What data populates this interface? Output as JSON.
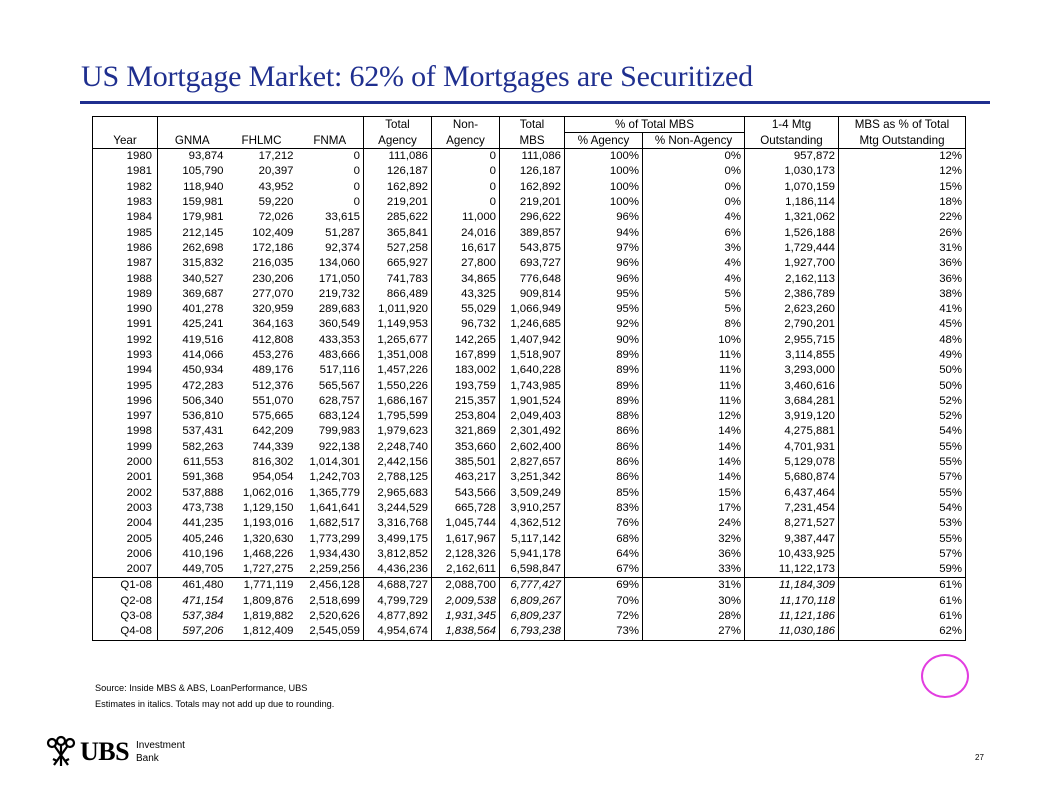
{
  "title": "US Mortgage Market: 62% of Mortgages are Securitized",
  "table": {
    "headers_row1": [
      "",
      "",
      "",
      "",
      "Total",
      "Non-",
      "Total",
      "% of Total MBS",
      "1-4 Mtg",
      "MBS as % of Total"
    ],
    "headers_row2": [
      "Year",
      "GNMA",
      "FHLMC",
      "FNMA",
      "Agency",
      "Agency",
      "MBS",
      "% Agency",
      "% Non-Agency",
      "Outstanding",
      "Mtg Outstanding"
    ],
    "rows": [
      [
        "1980",
        "93,874",
        "17,212",
        "0",
        "111,086",
        "0",
        "111,086",
        "100%",
        "0%",
        "957,872",
        "12%"
      ],
      [
        "1981",
        "105,790",
        "20,397",
        "0",
        "126,187",
        "0",
        "126,187",
        "100%",
        "0%",
        "1,030,173",
        "12%"
      ],
      [
        "1982",
        "118,940",
        "43,952",
        "0",
        "162,892",
        "0",
        "162,892",
        "100%",
        "0%",
        "1,070,159",
        "15%"
      ],
      [
        "1983",
        "159,981",
        "59,220",
        "0",
        "219,201",
        "0",
        "219,201",
        "100%",
        "0%",
        "1,186,114",
        "18%"
      ],
      [
        "1984",
        "179,981",
        "72,026",
        "33,615",
        "285,622",
        "11,000",
        "296,622",
        "96%",
        "4%",
        "1,321,062",
        "22%"
      ],
      [
        "1985",
        "212,145",
        "102,409",
        "51,287",
        "365,841",
        "24,016",
        "389,857",
        "94%",
        "6%",
        "1,526,188",
        "26%"
      ],
      [
        "1986",
        "262,698",
        "172,186",
        "92,374",
        "527,258",
        "16,617",
        "543,875",
        "97%",
        "3%",
        "1,729,444",
        "31%"
      ],
      [
        "1987",
        "315,832",
        "216,035",
        "134,060",
        "665,927",
        "27,800",
        "693,727",
        "96%",
        "4%",
        "1,927,700",
        "36%"
      ],
      [
        "1988",
        "340,527",
        "230,206",
        "171,050",
        "741,783",
        "34,865",
        "776,648",
        "96%",
        "4%",
        "2,162,113",
        "36%"
      ],
      [
        "1989",
        "369,687",
        "277,070",
        "219,732",
        "866,489",
        "43,325",
        "909,814",
        "95%",
        "5%",
        "2,386,789",
        "38%"
      ],
      [
        "1990",
        "401,278",
        "320,959",
        "289,683",
        "1,011,920",
        "55,029",
        "1,066,949",
        "95%",
        "5%",
        "2,623,260",
        "41%"
      ],
      [
        "1991",
        "425,241",
        "364,163",
        "360,549",
        "1,149,953",
        "96,732",
        "1,246,685",
        "92%",
        "8%",
        "2,790,201",
        "45%"
      ],
      [
        "1992",
        "419,516",
        "412,808",
        "433,353",
        "1,265,677",
        "142,265",
        "1,407,942",
        "90%",
        "10%",
        "2,955,715",
        "48%"
      ],
      [
        "1993",
        "414,066",
        "453,276",
        "483,666",
        "1,351,008",
        "167,899",
        "1,518,907",
        "89%",
        "11%",
        "3,114,855",
        "49%"
      ],
      [
        "1994",
        "450,934",
        "489,176",
        "517,116",
        "1,457,226",
        "183,002",
        "1,640,228",
        "89%",
        "11%",
        "3,293,000",
        "50%"
      ],
      [
        "1995",
        "472,283",
        "512,376",
        "565,567",
        "1,550,226",
        "193,759",
        "1,743,985",
        "89%",
        "11%",
        "3,460,616",
        "50%"
      ],
      [
        "1996",
        "506,340",
        "551,070",
        "628,757",
        "1,686,167",
        "215,357",
        "1,901,524",
        "89%",
        "11%",
        "3,684,281",
        "52%"
      ],
      [
        "1997",
        "536,810",
        "575,665",
        "683,124",
        "1,795,599",
        "253,804",
        "2,049,403",
        "88%",
        "12%",
        "3,919,120",
        "52%"
      ],
      [
        "1998",
        "537,431",
        "642,209",
        "799,983",
        "1,979,623",
        "321,869",
        "2,301,492",
        "86%",
        "14%",
        "4,275,881",
        "54%"
      ],
      [
        "1999",
        "582,263",
        "744,339",
        "922,138",
        "2,248,740",
        "353,660",
        "2,602,400",
        "86%",
        "14%",
        "4,701,931",
        "55%"
      ],
      [
        "2000",
        "611,553",
        "816,302",
        "1,014,301",
        "2,442,156",
        "385,501",
        "2,827,657",
        "86%",
        "14%",
        "5,129,078",
        "55%"
      ],
      [
        "2001",
        "591,368",
        "954,054",
        "1,242,703",
        "2,788,125",
        "463,217",
        "3,251,342",
        "86%",
        "14%",
        "5,680,874",
        "57%"
      ],
      [
        "2002",
        "537,888",
        "1,062,016",
        "1,365,779",
        "2,965,683",
        "543,566",
        "3,509,249",
        "85%",
        "15%",
        "6,437,464",
        "55%"
      ],
      [
        "2003",
        "473,738",
        "1,129,150",
        "1,641,641",
        "3,244,529",
        "665,728",
        "3,910,257",
        "83%",
        "17%",
        "7,231,454",
        "54%"
      ],
      [
        "2004",
        "441,235",
        "1,193,016",
        "1,682,517",
        "3,316,768",
        "1,045,744",
        "4,362,512",
        "76%",
        "24%",
        "8,271,527",
        "53%"
      ],
      [
        "2005",
        "405,246",
        "1,320,630",
        "1,773,299",
        "3,499,175",
        "1,617,967",
        "5,117,142",
        "68%",
        "32%",
        "9,387,447",
        "55%"
      ],
      [
        "2006",
        "410,196",
        "1,468,226",
        "1,934,430",
        "3,812,852",
        "2,128,326",
        "5,941,178",
        "64%",
        "36%",
        "10,433,925",
        "57%"
      ],
      [
        "2007",
        "449,705",
        "1,727,275",
        "2,259,256",
        "4,436,236",
        "2,162,611",
        "6,598,847",
        "67%",
        "33%",
        "11,122,173",
        "59%"
      ]
    ],
    "quarter_rows": [
      [
        "Q1-08",
        "461,480",
        "1,771,119",
        "2,456,128",
        "4,688,727",
        "2,088,700",
        "6,777,427",
        "69%",
        "31%",
        "11,184,309",
        "61%"
      ],
      [
        "Q2-08",
        "471,154",
        "1,809,876",
        "2,518,699",
        "4,799,729",
        "2,009,538",
        "6,809,267",
        "70%",
        "30%",
        "11,170,118",
        "61%"
      ],
      [
        "Q3-08",
        "537,384",
        "1,819,882",
        "2,520,626",
        "4,877,892",
        "1,931,345",
        "6,809,237",
        "72%",
        "28%",
        "11,121,186",
        "61%"
      ],
      [
        "Q4-08",
        "597,206",
        "1,812,409",
        "2,545,059",
        "4,954,674",
        "1,838,564",
        "6,793,238",
        "73%",
        "27%",
        "11,030,186",
        "62%"
      ]
    ],
    "quarter_italic_cols": [
      [
        6,
        9
      ],
      [
        1,
        5,
        6,
        9
      ],
      [
        1,
        5,
        6,
        9
      ],
      [
        1,
        5,
        6,
        9
      ]
    ]
  },
  "notes": {
    "source": "Source: Inside MBS & ABS, LoanPerformance, UBS",
    "estimates": "Estimates in italics. Totals may not add up due to rounding."
  },
  "highlight_color": "#e23de0",
  "title_color": "#1f2f8f",
  "logo": {
    "brand": "UBS",
    "line1": "Investment",
    "line2": "Bank",
    "icon": "three-keys-icon"
  },
  "page_number": "27"
}
